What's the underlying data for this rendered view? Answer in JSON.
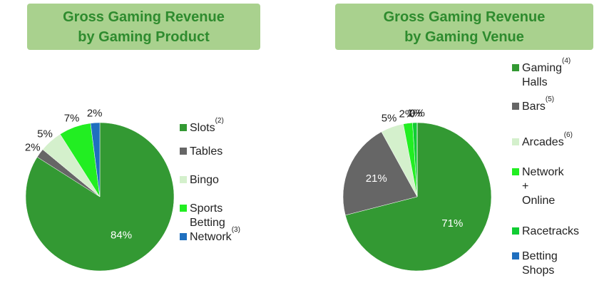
{
  "chart_data": [
    {
      "type": "pie",
      "title": "Gross Gaming Revenue\nby Gaming Product",
      "categories": [
        "Slots",
        "Tables",
        "Bingo",
        "Sports Betting",
        "Network"
      ],
      "footnotes": [
        "(2)",
        null,
        null,
        null,
        "(3)"
      ],
      "values": [
        84,
        2,
        5,
        7,
        2
      ],
      "value_labels": [
        "84%",
        "2%",
        "5%",
        "7%",
        "2%"
      ],
      "colors": [
        "#339933",
        "#666666",
        "#d4f0cc",
        "#22ee22",
        "#1f6fbf"
      ]
    },
    {
      "type": "pie",
      "title": "Gross Gaming Revenue\nby Gaming Venue",
      "categories": [
        "Gaming Halls",
        "Bars",
        "Arcades",
        "Network + Online",
        "Racetracks",
        "Betting Shops"
      ],
      "footnotes": [
        "(4)",
        "(5)",
        "(6)",
        null,
        null,
        null
      ],
      "values": [
        71,
        21,
        5,
        2,
        1,
        0
      ],
      "value_labels": [
        "71%",
        "21%",
        "5%",
        "2%",
        "1%",
        "0%"
      ],
      "colors": [
        "#339933",
        "#666666",
        "#d4f0cc",
        "#22ee22",
        "#11cc33",
        "#1f6fbf"
      ]
    }
  ]
}
